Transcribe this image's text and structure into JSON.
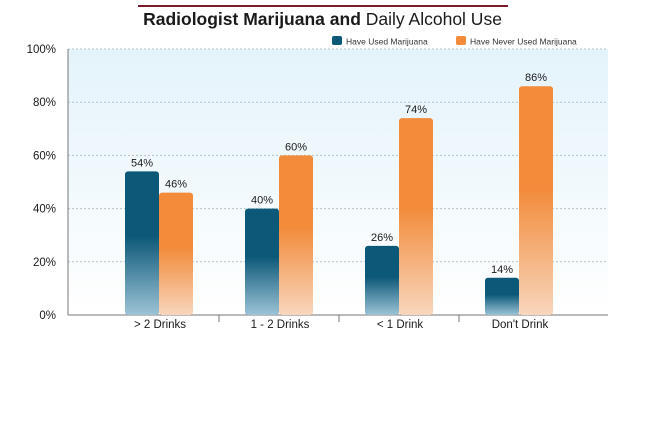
{
  "title": {
    "part1": "Radiologist Marijuana and ",
    "part2": "Daily Alcohol Use"
  },
  "colors": {
    "used": "#0c5878",
    "never": "#f28b3a",
    "title_rule": "#7d1a2a",
    "plot_bg_top": "#e4f3fb",
    "grid": "#b4c4cc"
  },
  "chart_data": {
    "type": "bar",
    "title": "Radiologist Marijuana and Daily Alcohol Use",
    "categories": [
      "> 2 Drinks",
      "1 - 2 Drinks",
      "< 1 Drink",
      "Don't Drink"
    ],
    "series": [
      {
        "name": "Have Used Marijuana",
        "values": [
          54,
          40,
          26,
          14
        ]
      },
      {
        "name": "Have Never Used Marijuana",
        "values": [
          46,
          60,
          74,
          86
        ]
      }
    ],
    "data_labels": [
      [
        "54%",
        "40%",
        "26%",
        "14%"
      ],
      [
        "46%",
        "60%",
        "74%",
        "86%"
      ]
    ],
    "ylim": [
      0,
      100
    ],
    "yticks": [
      "0%",
      "20%",
      "40%",
      "60%",
      "80%",
      "100%"
    ],
    "grid": true,
    "legend": "top-right"
  }
}
